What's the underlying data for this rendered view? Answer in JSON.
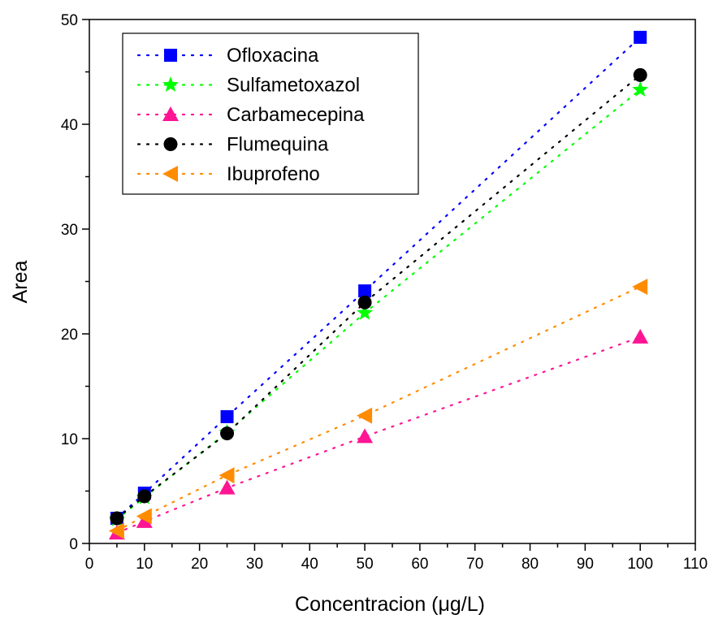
{
  "chart_data": {
    "type": "scatter",
    "xlabel": "Concentracion (μg/L)",
    "ylabel": "Area",
    "xlim": [
      0,
      110
    ],
    "ylim": [
      0,
      50
    ],
    "x_ticks": [
      0,
      10,
      20,
      30,
      40,
      50,
      60,
      70,
      80,
      90,
      100,
      110
    ],
    "y_ticks": [
      0,
      10,
      20,
      30,
      40,
      50
    ],
    "grid": false,
    "legend_position": "top-left",
    "series": [
      {
        "name": "Ofloxacina",
        "color": "#0000ff",
        "marker": "square",
        "line": "dotted",
        "x": [
          5,
          10,
          25,
          50,
          100
        ],
        "y": [
          2.4,
          4.8,
          12.1,
          24.1,
          48.3
        ]
      },
      {
        "name": "Sulfametoxazol",
        "color": "#00ff00",
        "marker": "star",
        "line": "dotted",
        "x": [
          5,
          10,
          25,
          50,
          100
        ],
        "y": [
          2.3,
          4.4,
          10.6,
          22.0,
          43.3
        ]
      },
      {
        "name": "Carbamecepina",
        "color": "#ff1493",
        "marker": "triangle-up",
        "line": "dotted",
        "x": [
          5,
          10,
          25,
          50,
          100
        ],
        "y": [
          1.0,
          2.1,
          5.3,
          10.2,
          19.7
        ]
      },
      {
        "name": "Flumequina",
        "color": "#000000",
        "marker": "circle",
        "line": "dotted",
        "x": [
          5,
          10,
          25,
          50,
          100
        ],
        "y": [
          2.4,
          4.5,
          10.5,
          23.0,
          44.7
        ]
      },
      {
        "name": "Ibuprofeno",
        "color": "#ff8c00",
        "marker": "triangle-left",
        "line": "dotted",
        "x": [
          5,
          10,
          25,
          50,
          100
        ],
        "y": [
          1.2,
          2.6,
          6.5,
          12.2,
          24.5
        ]
      }
    ]
  }
}
